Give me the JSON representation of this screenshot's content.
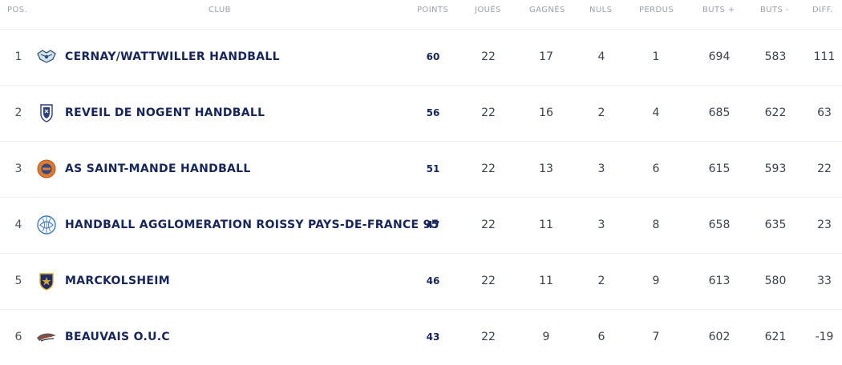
{
  "headers": {
    "pos": "POS.",
    "club": "CLUB",
    "points": "POINTS",
    "joues": "JOUÉS",
    "gagnes": "GAGNÉS",
    "nuls": "NULS",
    "perdus": "PERDUS",
    "buts_plus": "BUTS +",
    "buts_minus": "BUTS -",
    "diff": "DIFF."
  },
  "rows": [
    {
      "pos": "1",
      "club": "CERNAY/WATTWILLER HANDBALL",
      "points": "60",
      "joues": "22",
      "gagnes": "17",
      "nuls": "4",
      "perdus": "1",
      "buts_plus": "694",
      "buts_minus": "583",
      "diff": "111",
      "logo_icon": "cernay-handball-logo-icon"
    },
    {
      "pos": "2",
      "club": "REVEIL DE NOGENT HANDBALL",
      "points": "56",
      "joues": "22",
      "gagnes": "16",
      "nuls": "2",
      "perdus": "4",
      "buts_plus": "685",
      "buts_minus": "622",
      "diff": "63",
      "logo_icon": "nogent-handball-logo-icon"
    },
    {
      "pos": "3",
      "club": "AS SAINT-MANDE HANDBALL",
      "points": "51",
      "joues": "22",
      "gagnes": "13",
      "nuls": "3",
      "perdus": "6",
      "buts_plus": "615",
      "buts_minus": "593",
      "diff": "22",
      "logo_icon": "saint-mande-handball-logo-icon"
    },
    {
      "pos": "4",
      "club": "HANDBALL AGGLOMERATION ROISSY PAYS-DE-FRANCE 95",
      "points": "47",
      "joues": "22",
      "gagnes": "11",
      "nuls": "3",
      "perdus": "8",
      "buts_plus": "658",
      "buts_minus": "635",
      "diff": "23",
      "logo_icon": "roissy-handball-logo-icon"
    },
    {
      "pos": "5",
      "club": "MARCKOLSHEIM",
      "points": "46",
      "joues": "22",
      "gagnes": "11",
      "nuls": "2",
      "perdus": "9",
      "buts_plus": "613",
      "buts_minus": "580",
      "diff": "33",
      "logo_icon": "marckolsheim-logo-icon"
    },
    {
      "pos": "6",
      "club": "BEAUVAIS O.U.C",
      "points": "43",
      "joues": "22",
      "gagnes": "9",
      "nuls": "6",
      "perdus": "7",
      "buts_plus": "602",
      "buts_minus": "621",
      "diff": "-19",
      "logo_icon": "beauvais-ouc-logo-icon"
    }
  ],
  "colors": {
    "club_text": "#16265c",
    "header_text": "#9aa0b2",
    "row_divider": "#eceef3"
  }
}
